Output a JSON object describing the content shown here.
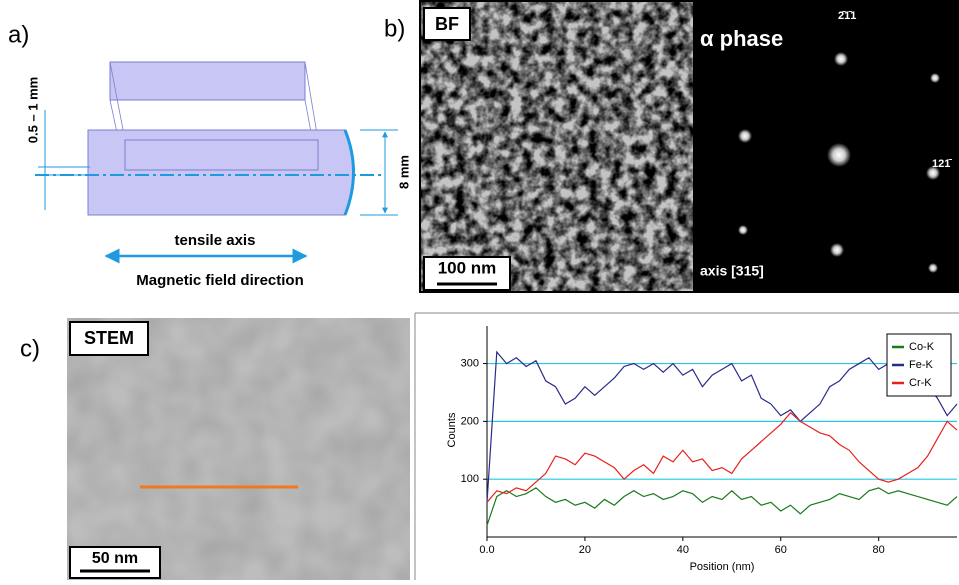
{
  "panels": {
    "a": {
      "label": "a)",
      "thickness": "0.5 – 1 mm",
      "diameter": "8 mm",
      "axis": "tensile axis",
      "field": "Magnetic field direction"
    },
    "b": {
      "label": "b)",
      "mode": "BF",
      "scale": "100 nm",
      "phase": "α phase",
      "spot_top": "2̄1̄1",
      "spot_right": "121̄",
      "zone": "axis [315]"
    },
    "c": {
      "label": "c)",
      "mode": "STEM",
      "scale": "50 nm"
    }
  },
  "chart_data": {
    "type": "line",
    "x_label": "Position (nm)",
    "y_label": "Counts",
    "x": [
      0,
      2,
      4,
      6,
      8,
      10,
      12,
      14,
      16,
      18,
      20,
      22,
      24,
      26,
      28,
      30,
      32,
      34,
      36,
      38,
      40,
      42,
      44,
      46,
      48,
      50,
      52,
      54,
      56,
      58,
      60,
      62,
      64,
      66,
      68,
      70,
      72,
      74,
      76,
      78,
      80,
      82,
      84,
      86,
      88,
      90,
      92,
      94,
      96
    ],
    "series": [
      {
        "name": "Co-K",
        "color": "#1a7a1a",
        "values": [
          20,
          70,
          80,
          70,
          75,
          85,
          70,
          60,
          65,
          55,
          60,
          50,
          65,
          55,
          70,
          80,
          70,
          75,
          65,
          70,
          80,
          75,
          60,
          70,
          65,
          80,
          65,
          70,
          55,
          60,
          45,
          55,
          40,
          55,
          60,
          65,
          75,
          70,
          65,
          80,
          85,
          75,
          80,
          75,
          70,
          65,
          60,
          55,
          70
        ]
      },
      {
        "name": "Fe-K",
        "color": "#2b2b8c",
        "values": [
          60,
          320,
          300,
          310,
          295,
          305,
          270,
          260,
          230,
          240,
          260,
          245,
          260,
          275,
          295,
          300,
          290,
          300,
          285,
          300,
          280,
          290,
          260,
          280,
          290,
          300,
          270,
          280,
          240,
          230,
          210,
          220,
          200,
          215,
          230,
          260,
          270,
          290,
          300,
          310,
          290,
          300,
          295,
          300,
          290,
          260,
          240,
          210,
          230
        ]
      },
      {
        "name": "Cr-K",
        "color": "#e8201c",
        "values": [
          60,
          80,
          75,
          85,
          80,
          95,
          110,
          140,
          135,
          125,
          145,
          140,
          130,
          120,
          100,
          115,
          125,
          110,
          140,
          130,
          150,
          130,
          135,
          115,
          120,
          110,
          135,
          150,
          165,
          180,
          195,
          215,
          200,
          190,
          180,
          175,
          160,
          150,
          130,
          115,
          100,
          95,
          100,
          110,
          120,
          140,
          170,
          200,
          185
        ]
      }
    ],
    "xlim": [
      0,
      96
    ],
    "ylim": [
      0,
      365
    ],
    "xticks": [
      {
        "value": 0,
        "label": "0.0"
      },
      20,
      40,
      60,
      80
    ],
    "yticks": [
      100,
      200,
      300
    ],
    "grid": true,
    "grid_color": "#22c8e8",
    "legend": "upper-right"
  }
}
